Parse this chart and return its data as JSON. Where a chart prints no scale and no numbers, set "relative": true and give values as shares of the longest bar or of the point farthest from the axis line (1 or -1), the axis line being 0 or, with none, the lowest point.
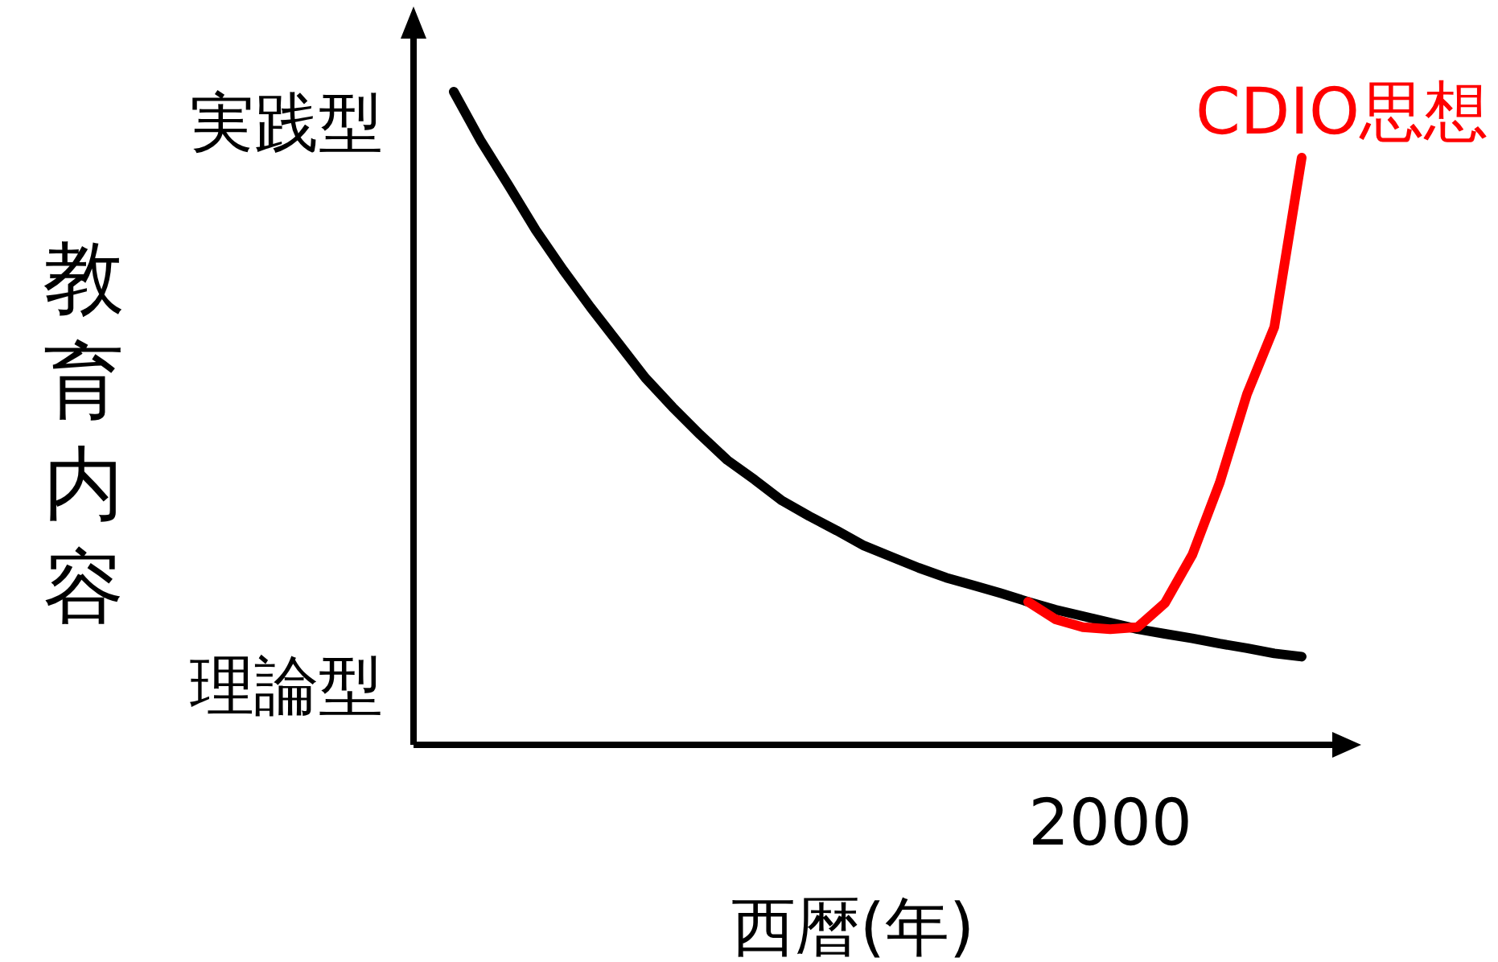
{
  "chart_data": {
    "type": "line",
    "relative": true,
    "xlabel": "西暦(年)",
    "ylabel": "教育内容",
    "annotations": [
      "実践型",
      "理論型",
      "2000"
    ],
    "categories": [
      null,
      null,
      null,
      null,
      null,
      null,
      null,
      null,
      null,
      null,
      null,
      null,
      null,
      null,
      null,
      null,
      null,
      null,
      null,
      null,
      null,
      null,
      null,
      null,
      null,
      null,
      null,
      null,
      null,
      null,
      null,
      null
    ],
    "series": [
      {
        "color": "#000000",
        "values": [
          1,
          0.924,
          0.857,
          0.788,
          0.727,
          0.67,
          0.616,
          0.562,
          0.517,
          0.475,
          0.436,
          0.406,
          0.374,
          0.35,
          0.328,
          0.305,
          0.288,
          0.271,
          0.256,
          0.244,
          0.232,
          0.219,
          0.207,
          0.197,
          0.187,
          0.177,
          0.17,
          0.163,
          0.155,
          0.148,
          0.14,
          0.135
        ]
      },
      {
        "name": "CDIO思想",
        "color": "#ff0000",
        "values": [
          null,
          null,
          null,
          null,
          null,
          null,
          null,
          null,
          null,
          null,
          null,
          null,
          null,
          null,
          null,
          null,
          null,
          null,
          null,
          null,
          null,
          0.219,
          0.192,
          0.18,
          0.177,
          0.18,
          0.217,
          0.291,
          0.401,
          0.537,
          0.64,
          0.899
        ]
      }
    ]
  }
}
